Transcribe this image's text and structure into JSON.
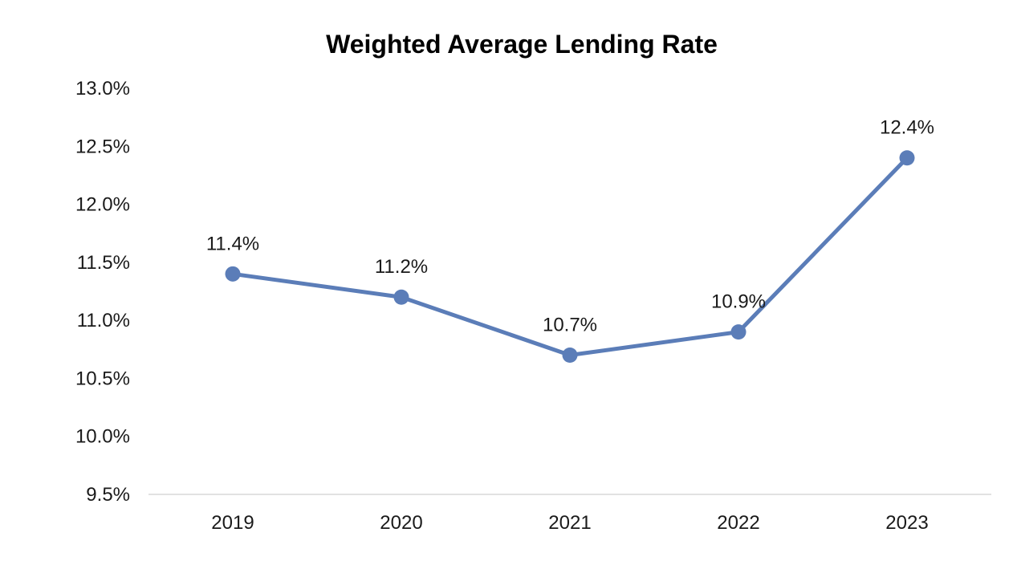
{
  "chart_data": {
    "type": "line",
    "title": "Weighted Average Lending Rate",
    "xlabel": "",
    "ylabel": "",
    "categories": [
      "2019",
      "2020",
      "2021",
      "2022",
      "2023"
    ],
    "series": [
      {
        "values": [
          11.4,
          11.2,
          10.7,
          10.9,
          12.4
        ],
        "data_labels": [
          "11.4%",
          "11.2%",
          "10.7%",
          "10.9%",
          "12.4%"
        ]
      }
    ],
    "ylim": [
      9.5,
      13.0
    ],
    "y_ticks": [
      9.5,
      10.0,
      10.5,
      11.0,
      11.5,
      12.0,
      12.5,
      13.0
    ],
    "y_tick_labels": [
      "9.5%",
      "10.0%",
      "10.5%",
      "11.0%",
      "11.5%",
      "12.0%",
      "12.5%",
      "13.0%"
    ],
    "grid": false,
    "legend": "none",
    "colors": {
      "series": "#5b7db8",
      "axis": "#d9d9d9",
      "text": "#1a1a1a"
    }
  }
}
